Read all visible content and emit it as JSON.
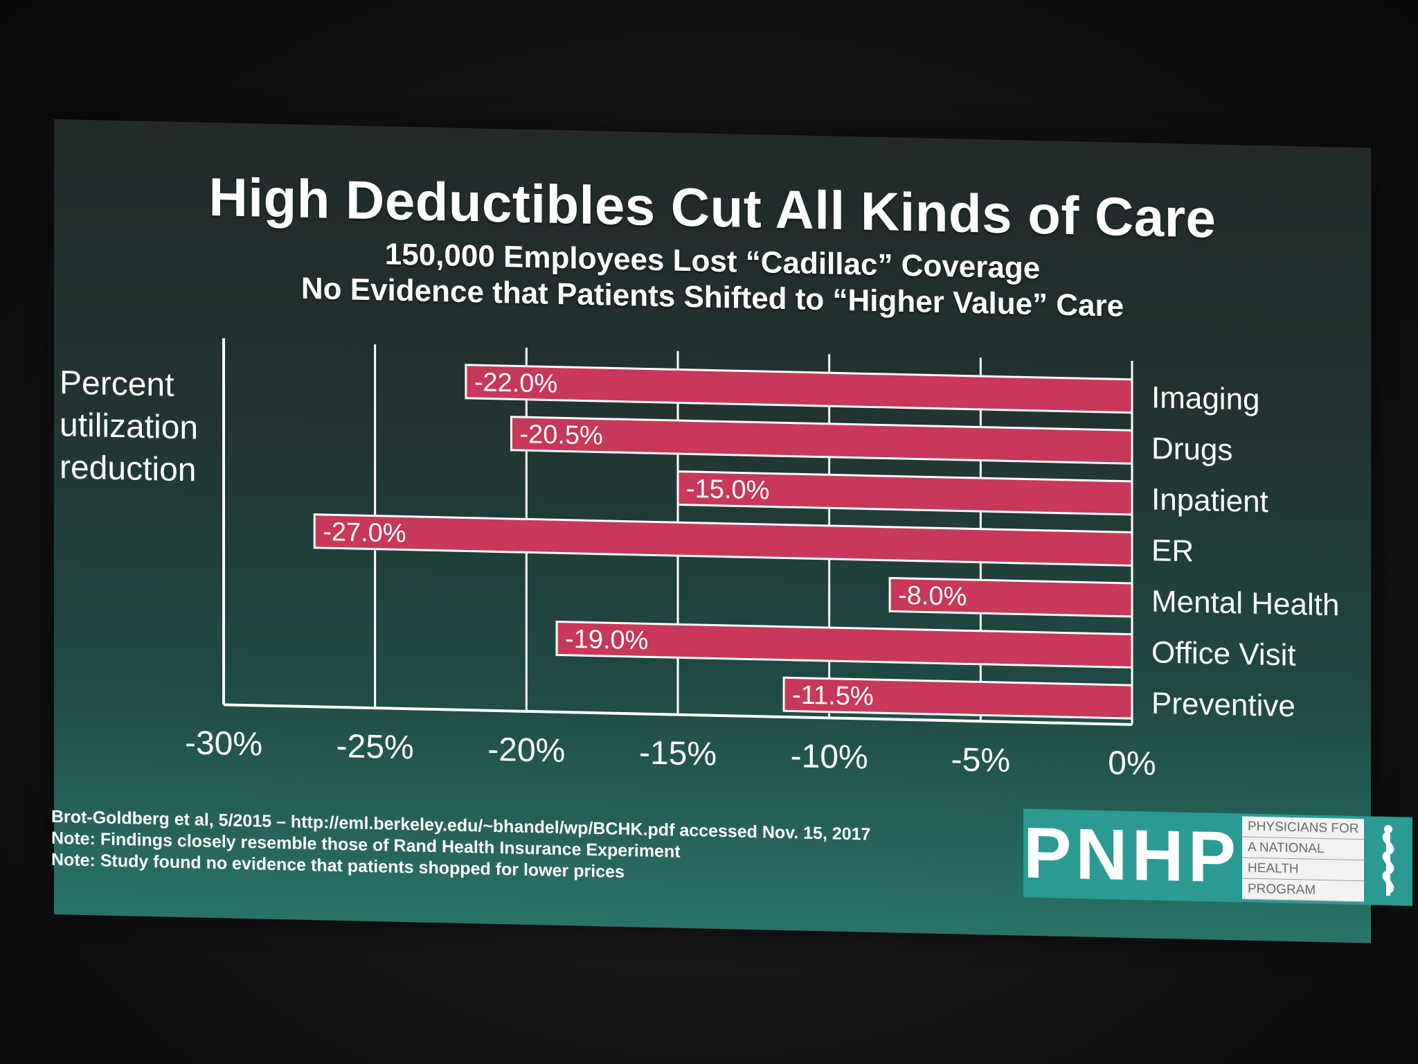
{
  "slide": {
    "title": "High Deductibles Cut All Kinds of Care",
    "subtitle1": "150,000 Employees Lost “Cadillac” Coverage",
    "subtitle2": "No Evidence that Patients Shifted to “Higher Value” Care",
    "ylabel_lines": [
      "Percent",
      "utilization",
      "reduction"
    ]
  },
  "chart_data": {
    "type": "bar",
    "orientation": "horizontal",
    "categories": [
      "Imaging",
      "Drugs",
      "Inpatient",
      "ER",
      "Mental Health",
      "Office Visit",
      "Preventive"
    ],
    "values": [
      -22.0,
      -20.5,
      -15.0,
      -27.0,
      -8.0,
      -19.0,
      -11.5
    ],
    "data_labels": [
      "-22.0%",
      "-20.5%",
      "-15.0%",
      "-27.0%",
      "-8.0%",
      "-19.0%",
      "-11.5%"
    ],
    "x_ticks": [
      -30,
      -25,
      -20,
      -15,
      -10,
      -5,
      0
    ],
    "x_tick_labels": [
      "-30%",
      "-25%",
      "-20%",
      "-15%",
      "-10%",
      "-5%",
      "0%"
    ],
    "xlim": [
      -30,
      0
    ],
    "ylabel": "Percent utilization reduction",
    "grid": true,
    "bar_color": "#c8385a",
    "category_label_position": "right"
  },
  "footer": {
    "lines": [
      "Brot-Goldberg et al, 5/2015 – http://eml.berkeley.edu/~bhandel/wp/BCHK.pdf accessed Nov. 15, 2017",
      "Note: Findings closely resemble those of Rand Health Insurance Experiment",
      "Note: Study found no evidence that patients shopped for lower prices"
    ]
  },
  "logo": {
    "letters": "PNHP",
    "text_lines": [
      "PHYSICIANS FOR",
      "A NATIONAL",
      "HEALTH",
      "PROGRAM"
    ],
    "icon": "caduceus-icon"
  }
}
